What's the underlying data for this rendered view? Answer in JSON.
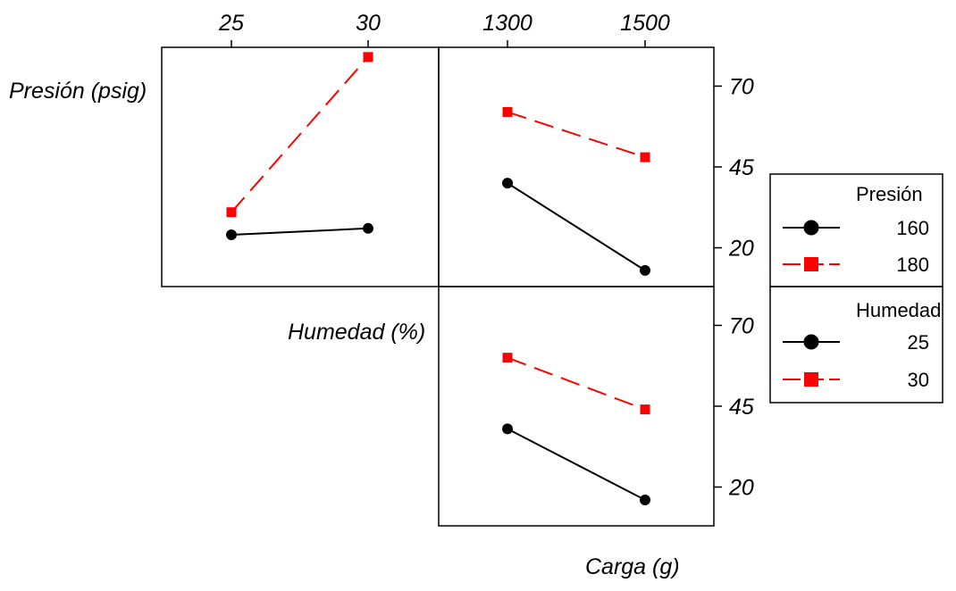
{
  "chart_data": {
    "type": "line",
    "kind": "interaction-plot-matrix",
    "factors": [
      {
        "name": "Presión (psig)",
        "levels": [
          "160",
          "180"
        ]
      },
      {
        "name": "Humedad (%)",
        "levels": [
          "25",
          "30"
        ]
      },
      {
        "name": "Carga (g)",
        "levels": [
          "1300",
          "1500"
        ]
      }
    ],
    "top_axis_ticks": {
      "humedad": [
        "25",
        "30"
      ],
      "carga": [
        "1300",
        "1500"
      ]
    },
    "y_ticks": [
      "70",
      "45",
      "20"
    ],
    "ylim": [
      8,
      82
    ],
    "panels": [
      {
        "id": "presion_x_humedad",
        "row_factor": "Presión (psig)",
        "x_factor": "Humedad (%)",
        "x": [
          "25",
          "30"
        ],
        "series": [
          {
            "name": "160",
            "values": [
              24,
              26
            ]
          },
          {
            "name": "180",
            "values": [
              31,
              79
            ]
          }
        ]
      },
      {
        "id": "presion_x_carga",
        "row_factor": "Presión (psig)",
        "x_factor": "Carga (g)",
        "x": [
          "1300",
          "1500"
        ],
        "series": [
          {
            "name": "160",
            "values": [
              40,
              13
            ]
          },
          {
            "name": "180",
            "values": [
              62,
              48
            ]
          }
        ]
      },
      {
        "id": "humedad_x_carga",
        "row_factor": "Humedad (%)",
        "x_factor": "Carga (g)",
        "x": [
          "1300",
          "1500"
        ],
        "series": [
          {
            "name": "25",
            "values": [
              38,
              16
            ]
          },
          {
            "name": "30",
            "values": [
              60,
              44
            ]
          }
        ]
      }
    ],
    "legends": [
      {
        "title": "Presión",
        "entries": [
          "160",
          "180"
        ]
      },
      {
        "title": "Humedad",
        "entries": [
          "25",
          "30"
        ]
      }
    ],
    "series_style": {
      "low": {
        "color": "#000000",
        "dash": "solid",
        "marker": "circle"
      },
      "high": {
        "color": "#ff0000",
        "dash": "dashed",
        "marker": "square"
      }
    },
    "labels": {
      "presion": "Presión (psig)",
      "humedad": "Humedad (%)",
      "carga": "Carga (g)"
    }
  }
}
